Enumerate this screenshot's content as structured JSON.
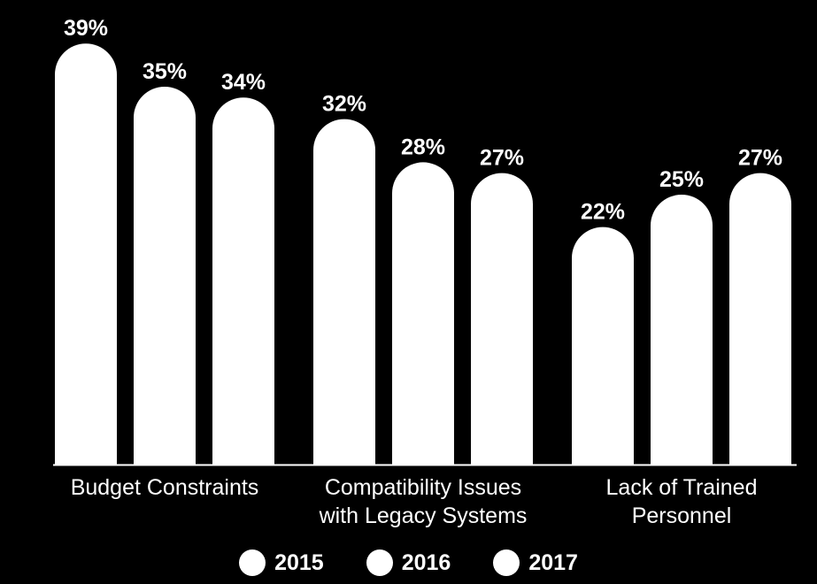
{
  "chart_data": {
    "type": "bar",
    "title": "",
    "xlabel": "",
    "ylabel": "",
    "categories": [
      [
        "Budget Constraints"
      ],
      [
        "Compatibility Issues",
        "with Legacy Systems"
      ],
      [
        "Lack of Trained",
        "Personnel"
      ]
    ],
    "series": [
      {
        "name": "2015",
        "values": [
          39,
          32,
          22
        ],
        "labels": [
          "39%",
          "32%",
          "22%"
        ]
      },
      {
        "name": "2016",
        "values": [
          35,
          28,
          25
        ],
        "labels": [
          "35%",
          "28%",
          "25%"
        ]
      },
      {
        "name": "2017",
        "values": [
          34,
          27,
          27
        ],
        "labels": [
          "34%",
          "27%",
          "27%"
        ]
      }
    ],
    "ylim": [
      0,
      40
    ],
    "value_suffix": "%",
    "grid": false,
    "legend_position": "bottom",
    "colors": {
      "background": "#000000",
      "bars": "#ffffff",
      "text": "#ffffff",
      "axis": "#ffffff"
    }
  }
}
